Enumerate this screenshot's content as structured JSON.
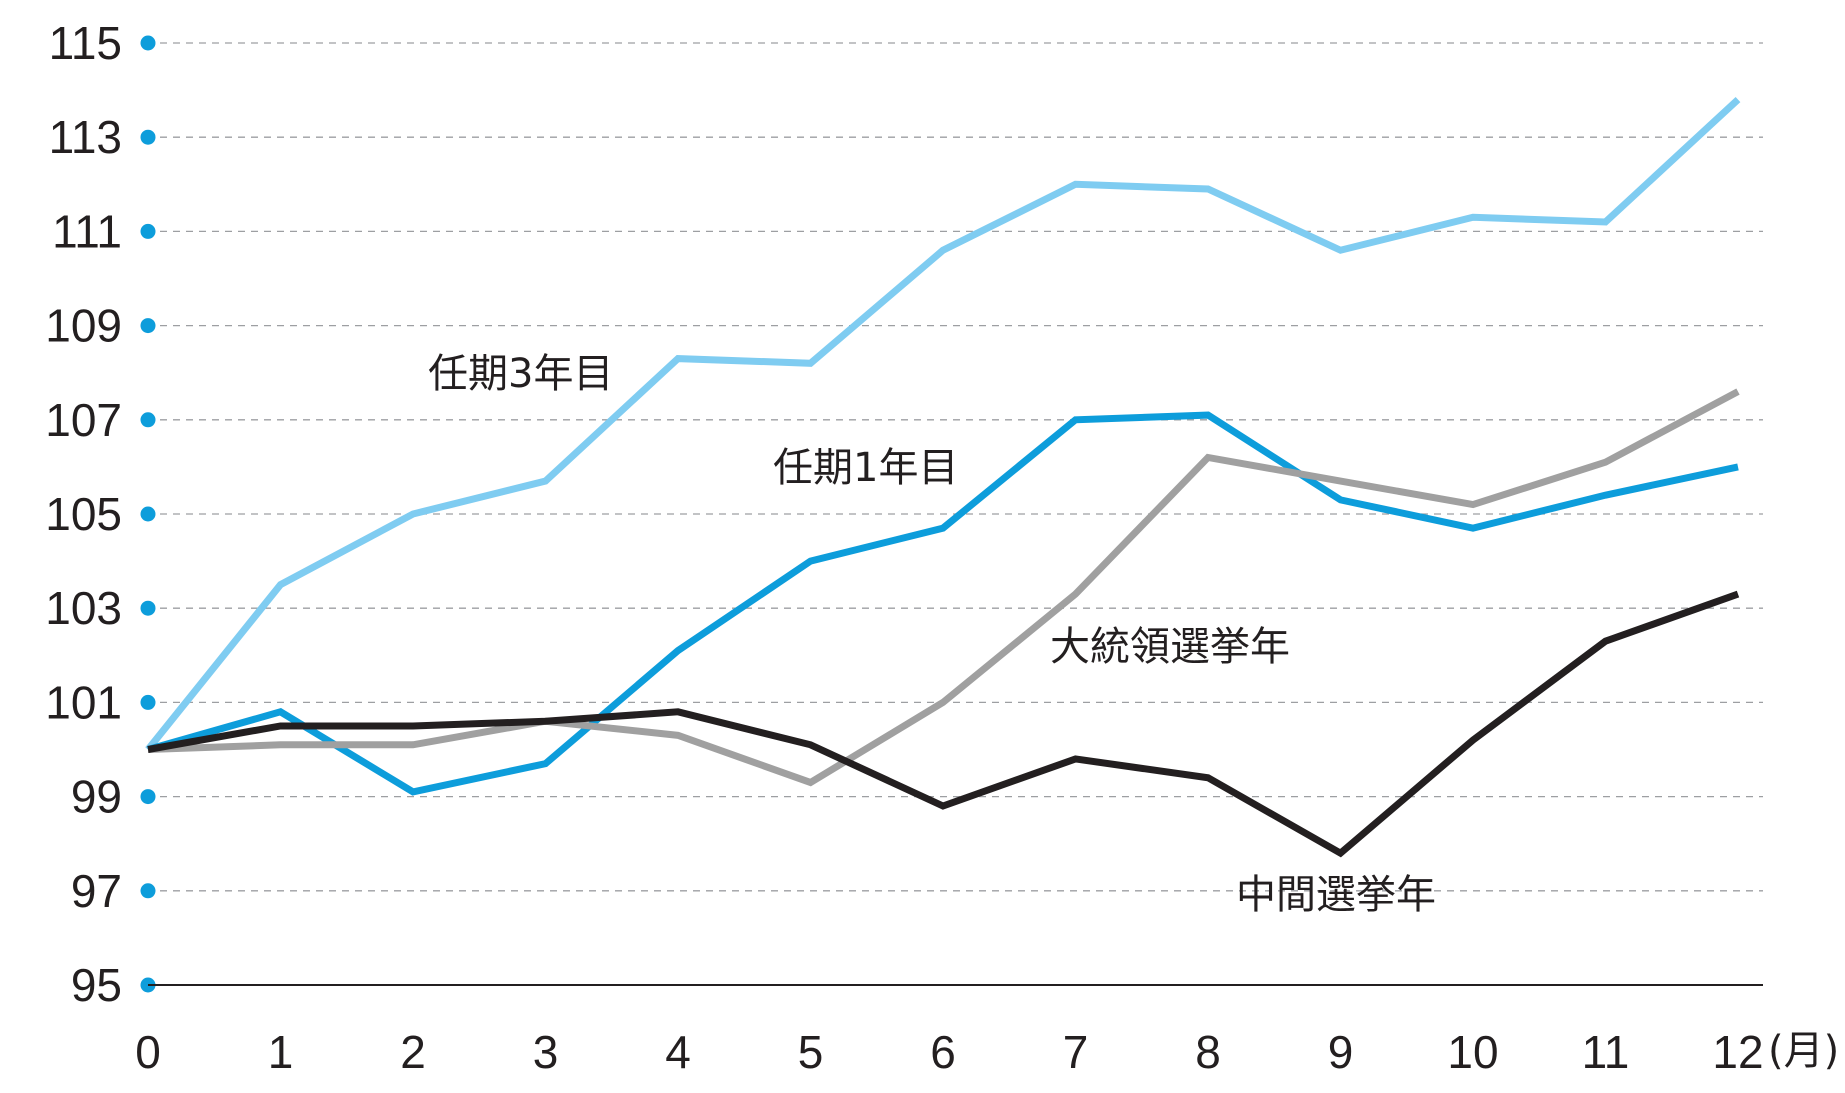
{
  "chart_data": {
    "type": "line",
    "x": [
      0,
      1,
      2,
      3,
      4,
      5,
      6,
      7,
      8,
      9,
      10,
      11,
      12
    ],
    "x_unit_label": "(月)",
    "ylim": [
      95,
      115
    ],
    "yticks": [
      95,
      97,
      99,
      101,
      103,
      105,
      107,
      109,
      111,
      113,
      115
    ],
    "grid": "horizontal dashed",
    "legend": "inline labels",
    "series": [
      {
        "name": "任期3年目",
        "color": "#7fccf1",
        "values": [
          100.0,
          103.5,
          105.0,
          105.7,
          108.3,
          108.2,
          110.6,
          112.0,
          111.9,
          110.6,
          111.3,
          111.2,
          113.8
        ]
      },
      {
        "name": "任期1年目",
        "color": "#0d9ddb",
        "values": [
          100.0,
          100.8,
          99.1,
          99.7,
          102.1,
          104.0,
          104.7,
          107.0,
          107.1,
          105.3,
          104.7,
          105.4,
          106.0
        ]
      },
      {
        "name": "大統領選挙年",
        "color": "#a0a0a0",
        "values": [
          100.0,
          100.1,
          100.1,
          100.6,
          100.3,
          99.3,
          101.0,
          103.3,
          106.2,
          105.7,
          105.2,
          106.1,
          107.6
        ]
      },
      {
        "name": "中間選挙年",
        "color": "#231f20",
        "values": [
          100.0,
          100.5,
          100.5,
          100.6,
          100.8,
          100.1,
          98.8,
          99.8,
          99.4,
          97.8,
          100.2,
          102.3,
          103.3
        ]
      }
    ]
  }
}
